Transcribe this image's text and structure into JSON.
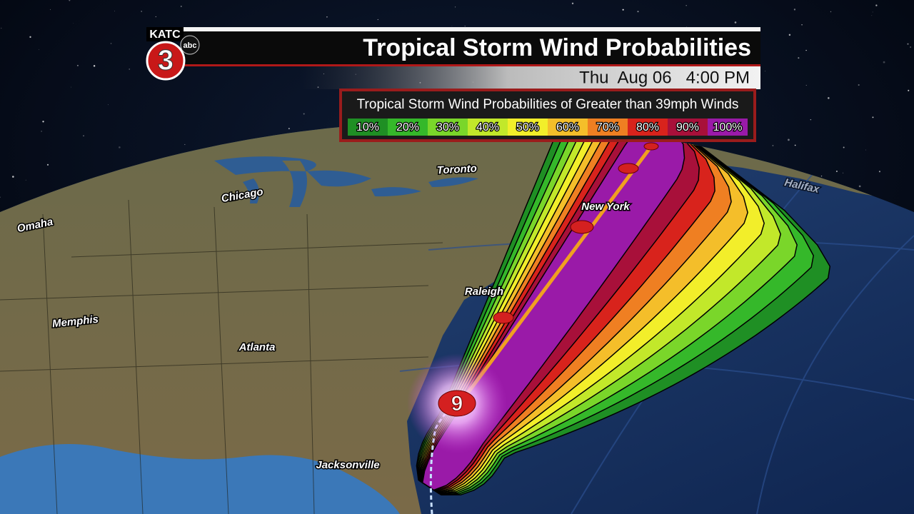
{
  "header": {
    "logo": {
      "station": "KATC",
      "channel": "3",
      "network": "abc"
    },
    "title": "Tropical Storm Wind Probabilities",
    "datetime": "Thu  Aug 06   4:00 PM"
  },
  "legend": {
    "title": "Tropical Storm Wind Probabilities of Greater than 39mph Winds",
    "items": [
      {
        "label": "10%",
        "color": "#1f8f24"
      },
      {
        "label": "20%",
        "color": "#35b82a"
      },
      {
        "label": "30%",
        "color": "#7ad62a"
      },
      {
        "label": "40%",
        "color": "#c2e82a"
      },
      {
        "label": "50%",
        "color": "#f2ee2a"
      },
      {
        "label": "60%",
        "color": "#f4be2a"
      },
      {
        "label": "70%",
        "color": "#ef7f22"
      },
      {
        "label": "80%",
        "color": "#d8231c"
      },
      {
        "label": "90%",
        "color": "#a8103a"
      },
      {
        "label": "100%",
        "color": "#9a1aa8"
      }
    ]
  },
  "cities": {
    "toronto": "Toronto",
    "chicago": "Chicago",
    "omaha": "Omaha",
    "new_york": "New York",
    "raleigh": "Raleigh",
    "memphis": "Memphis",
    "atlanta": "Atlanta",
    "jacksonville": "Jacksonville",
    "halifax": "Halifax"
  }
}
